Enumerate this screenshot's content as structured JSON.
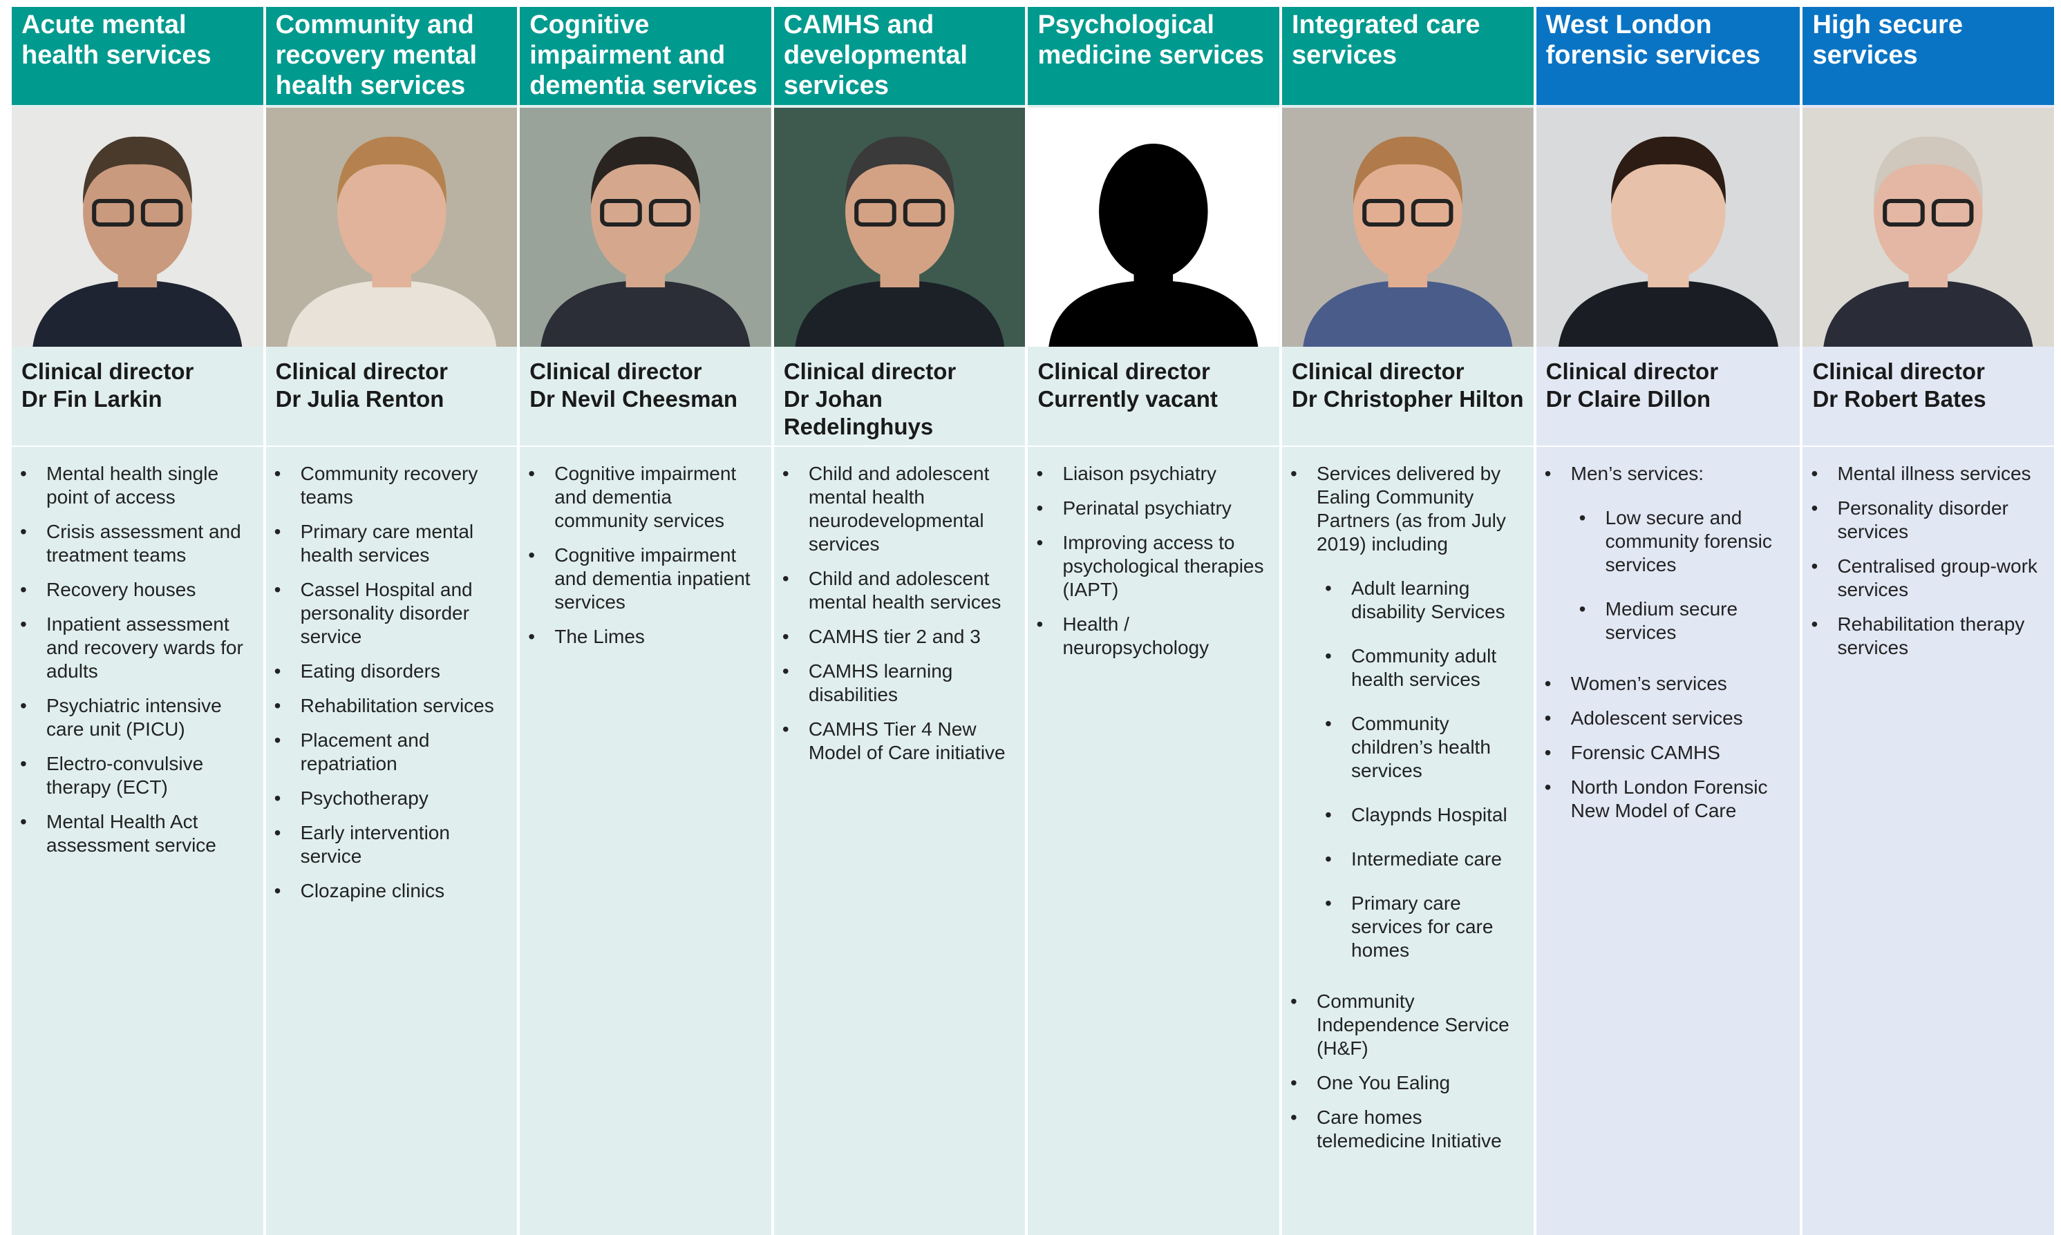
{
  "columns": [
    {
      "title": "Acute mental health services",
      "color": "#009a8e",
      "background": "#e0efee",
      "role": "Clinical director",
      "name": "Dr Fin Larkin",
      "items": [
        "Mental health single point of access",
        "Crisis assessment and treatment teams",
        "Recovery houses",
        "Inpatient assessment and recovery wards for adults",
        "Psychiatric intensive care unit (PICU)",
        "Electro-convulsive therapy (ECT)",
        "Mental Health Act assessment service"
      ]
    },
    {
      "title": "Community and recovery mental health services",
      "color": "#009a8e",
      "background": "#e0efee",
      "role": "Clinical director",
      "name": "Dr Julia Renton",
      "items": [
        "Community recovery teams",
        "Primary care mental health services",
        "Cassel Hospital and personality disorder service",
        "Eating disorders",
        "Rehabilitation services",
        "Placement and repatriation",
        "Psychotherapy",
        "Early intervention service",
        "Clozapine clinics"
      ]
    },
    {
      "title": "Cognitive impairment and dementia services",
      "color": "#009a8e",
      "background": "#e0efee",
      "role": "Clinical director",
      "name": "Dr Nevil Cheesman",
      "items": [
        "Cognitive impairment and dementia community services",
        "Cognitive impairment and dementia inpatient services",
        "The Limes"
      ]
    },
    {
      "title": "CAMHS and developmental services",
      "color": "#009a8e",
      "background": "#e0efee",
      "role": "Clinical director",
      "name": "Dr Johan Redelinghuys",
      "items": [
        "Child and adolescent mental health neurodevelopmental services",
        "Child and adolescent mental health services",
        "CAMHS tier 2 and 3",
        "CAMHS learning disabilities",
        "CAMHS Tier 4 New Model of Care initiative"
      ]
    },
    {
      "title": "Psychological medicine services",
      "color": "#009a8e",
      "background": "#e0efee",
      "role": "Clinical director",
      "name": "Currently vacant",
      "items": [
        "Liaison psychiatry",
        "Perinatal psychiatry",
        "Improving access to psychological therapies (IAPT)",
        "Health / neuropsychology"
      ]
    },
    {
      "title": "Integrated care services",
      "color": "#009a8e",
      "background": "#e0efee",
      "role": "Clinical director",
      "name": "Dr Christopher Hilton",
      "items": [
        {
          "text": "Services delivered by Ealing Community Partners (as from July 2019) including",
          "children": [
            "Adult learning disability Services",
            "Community adult health services",
            "Community children’s health services",
            "Claypnds Hospital",
            "Intermediate care",
            "Primary care services for care homes"
          ]
        },
        "Community Independence Service (H&F)",
        "One You Ealing",
        "Care homes telemedicine Initiative"
      ]
    },
    {
      "title": "West London forensic services",
      "color": "#0a74c4",
      "background": "#e2e7f4",
      "role": "Clinical director",
      "name": "Dr Claire Dillon",
      "items": [
        {
          "text": "Men’s services:",
          "children": [
            "Low secure and community forensic services",
            "Medium secure services"
          ]
        },
        "Women’s services",
        "Adolescent services",
        "Forensic CAMHS",
        "North London Forensic New Model of Care"
      ]
    },
    {
      "title": "High secure services",
      "color": "#0a74c4",
      "background": "#e2e7f4",
      "role": "Clinical director",
      "name": "Dr Robert Bates",
      "items": [
        "Mental illness services",
        "Personality disorder services",
        "Centralised group-work services",
        "Rehabilitation therapy services"
      ]
    }
  ]
}
